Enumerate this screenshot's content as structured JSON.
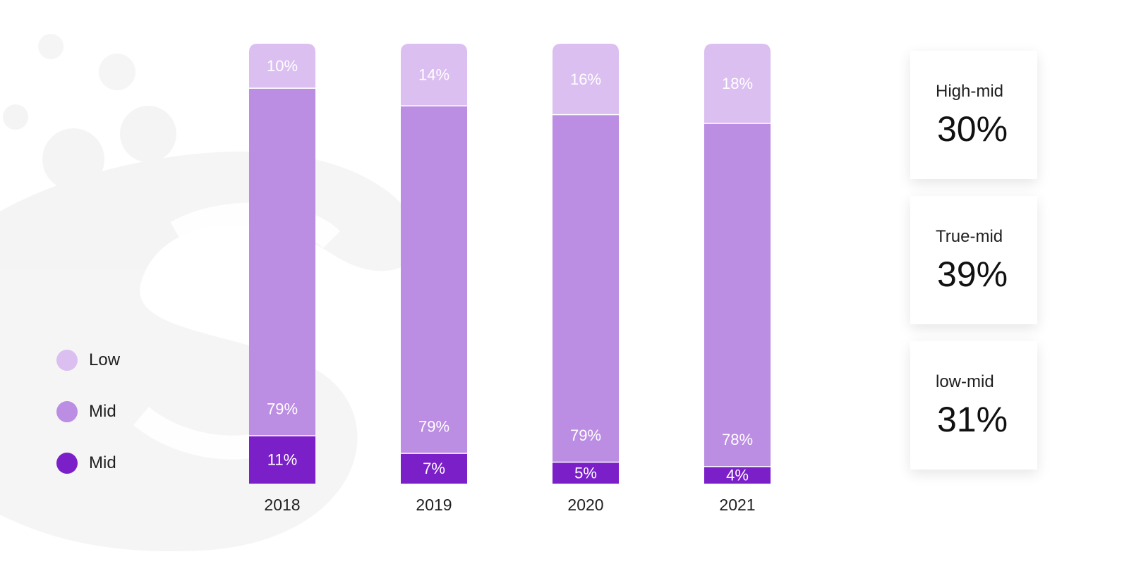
{
  "chart_data": {
    "type": "bar",
    "stacked": true,
    "categories": [
      "2018",
      "2019",
      "2020",
      "2021"
    ],
    "series": [
      {
        "name": "Mid",
        "color": "#7b1fc9",
        "values": [
          11,
          7,
          5,
          4
        ]
      },
      {
        "name": "Mid",
        "color": "#bb8de3",
        "values": [
          79,
          79,
          79,
          78
        ]
      },
      {
        "name": "Low",
        "color": "#dbbff0",
        "values": [
          10,
          14,
          16,
          18
        ]
      }
    ],
    "ylim": [
      0,
      100
    ],
    "grid": false,
    "legend": "left",
    "data_labels": true,
    "label_suffix": "%"
  },
  "legend": [
    {
      "label": "Low",
      "color": "#dbbff0"
    },
    {
      "label": "Mid",
      "color": "#bb8de3"
    },
    {
      "label": "Mid",
      "color": "#7b1fc9"
    }
  ],
  "stats": [
    {
      "label": "High-mid",
      "value": "30%"
    },
    {
      "label": "True-mid",
      "value": "39%"
    },
    {
      "label": "low-mid",
      "value": "31%"
    }
  ]
}
